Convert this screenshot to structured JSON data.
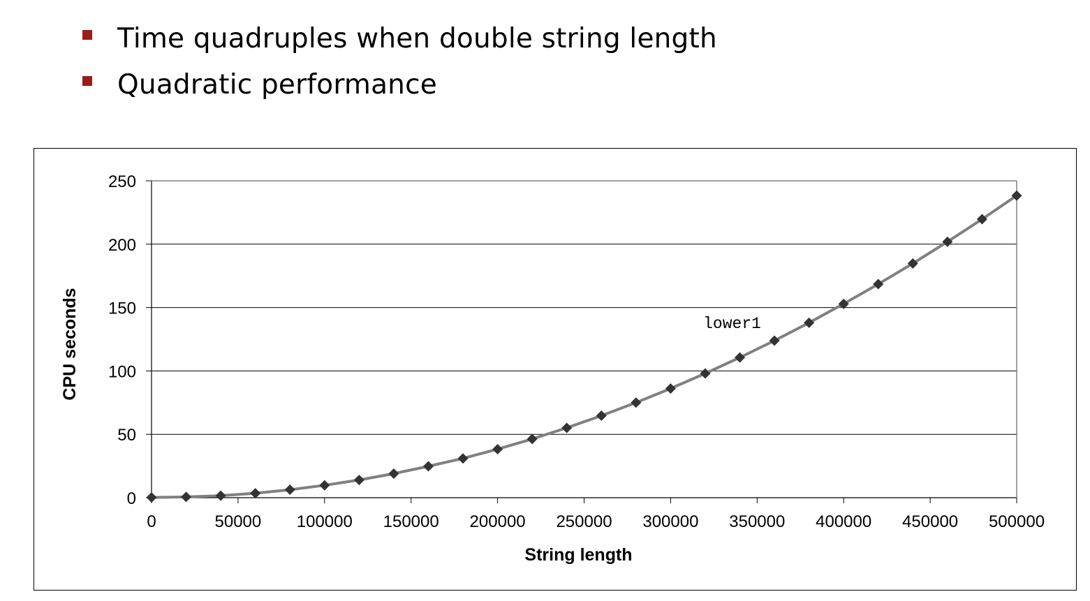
{
  "bullets": [
    {
      "text": "Time quadruples when double string length"
    },
    {
      "text": "Quadratic performance"
    }
  ],
  "colors": {
    "bullet": "#9b1b1b",
    "line": "#808080",
    "marker": "#333333",
    "grid": "#000000"
  },
  "chart_data": {
    "type": "line",
    "xlabel": "String length",
    "ylabel": "CPU seconds",
    "xlim": [
      0,
      500000
    ],
    "ylim": [
      0,
      250
    ],
    "xticks": [
      0,
      50000,
      100000,
      150000,
      200000,
      250000,
      300000,
      350000,
      400000,
      450000,
      500000
    ],
    "yticks": [
      0,
      50,
      100,
      150,
      200,
      250
    ],
    "grid": "horizontal",
    "annotation": {
      "text": "lower1",
      "x": 335000,
      "y": 135
    },
    "series": [
      {
        "marker": "diamond",
        "x": [
          0,
          20000,
          40000,
          60000,
          80000,
          100000,
          120000,
          140000,
          160000,
          180000,
          200000,
          220000,
          240000,
          260000,
          280000,
          300000,
          320000,
          340000,
          360000,
          380000,
          400000,
          420000,
          440000,
          460000,
          480000,
          500000
        ],
        "y": [
          0.2,
          0.6,
          1.6,
          3.5,
          6.3,
          9.8,
          14,
          19,
          24.8,
          31,
          38.3,
          46.3,
          55.1,
          64.7,
          75,
          86.1,
          98,
          110.6,
          123.9,
          138,
          152.9,
          168.5,
          184.8,
          201.9,
          219.7,
          238.3
        ]
      }
    ]
  }
}
